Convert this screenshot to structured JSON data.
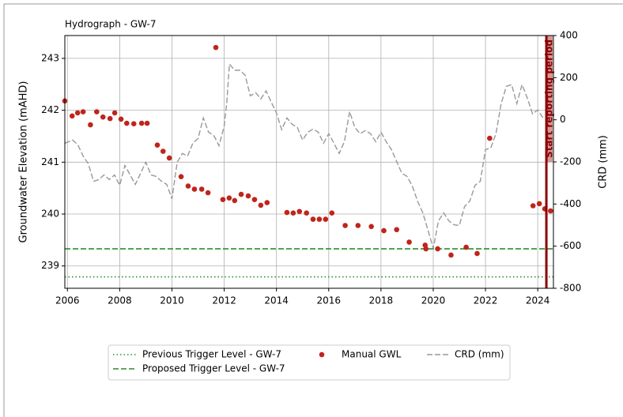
{
  "chart_data": {
    "type": "line",
    "title": "Hydrograph - GW-7",
    "ylabel": "Groundwater Elevation (mAHD)",
    "y2label": "CRD (mm)",
    "xlim": [
      2005.9,
      2024.6
    ],
    "xticks": [
      2006,
      2008,
      2010,
      2012,
      2014,
      2016,
      2018,
      2020,
      2022,
      2024
    ],
    "ylim": [
      238.57,
      243.44
    ],
    "yticks": [
      239,
      240,
      241,
      242,
      243
    ],
    "y2lim": [
      -800,
      400
    ],
    "y2ticks": [
      -800,
      -600,
      -400,
      -200,
      0,
      200,
      400
    ],
    "grid": true,
    "legend": "below",
    "series": [
      {
        "name": "Manual GWL",
        "type": "scatter",
        "color": "#c0241b",
        "x": [
          2005.9,
          2006.18,
          2006.39,
          2006.6,
          2006.88,
          2007.12,
          2007.36,
          2007.63,
          2007.81,
          2008.05,
          2008.27,
          2008.54,
          2008.84,
          2009.05,
          2009.44,
          2009.66,
          2009.9,
          2010.35,
          2010.62,
          2010.86,
          2011.14,
          2011.38,
          2011.68,
          2011.95,
          2012.19,
          2012.4,
          2012.65,
          2012.92,
          2013.16,
          2013.4,
          2013.64,
          2014.4,
          2014.64,
          2014.88,
          2015.15,
          2015.4,
          2015.64,
          2015.88,
          2016.12,
          2016.63,
          2017.12,
          2017.63,
          2018.11,
          2018.6,
          2019.08,
          2019.69,
          2019.72,
          2020.17,
          2020.68,
          2021.26,
          2021.68,
          2022.16,
          2023.82,
          2024.06,
          2024.27,
          2024.49
        ],
        "values": [
          242.18,
          241.89,
          241.95,
          241.97,
          241.72,
          241.97,
          241.87,
          241.84,
          241.95,
          241.83,
          241.75,
          241.74,
          241.75,
          241.75,
          241.33,
          241.21,
          241.08,
          240.72,
          240.54,
          240.48,
          240.48,
          240.41,
          243.21,
          240.28,
          240.31,
          240.26,
          240.38,
          240.35,
          240.28,
          240.17,
          240.22,
          240.03,
          240.02,
          240.05,
          240.02,
          239.9,
          239.9,
          239.9,
          240.02,
          239.78,
          239.78,
          239.76,
          239.68,
          239.7,
          239.46,
          239.4,
          239.33,
          239.33,
          239.21,
          239.36,
          239.24,
          241.46,
          240.16,
          240.2,
          240.1,
          240.06
        ]
      },
      {
        "name": "CRD (mm)",
        "type": "line",
        "axis": "y2",
        "color": "#999999",
        "x": [
          2005.9,
          2006.2,
          2006.4,
          2006.6,
          2006.8,
          2007.0,
          2007.2,
          2007.4,
          2007.6,
          2007.8,
          2008.0,
          2008.2,
          2008.4,
          2008.6,
          2008.8,
          2009.0,
          2009.2,
          2009.4,
          2009.6,
          2009.8,
          2010.0,
          2010.2,
          2010.4,
          2010.6,
          2010.8,
          2011.0,
          2011.2,
          2011.4,
          2011.6,
          2011.8,
          2012.0,
          2012.1,
          2012.2,
          2012.4,
          2012.6,
          2012.8,
          2013.0,
          2013.2,
          2013.4,
          2013.6,
          2013.8,
          2014.0,
          2014.2,
          2014.4,
          2014.6,
          2014.8,
          2015.0,
          2015.2,
          2015.4,
          2015.6,
          2015.8,
          2016.0,
          2016.2,
          2016.4,
          2016.6,
          2016.8,
          2017.0,
          2017.2,
          2017.4,
          2017.6,
          2017.8,
          2018.0,
          2018.2,
          2018.4,
          2018.6,
          2018.8,
          2019.0,
          2019.2,
          2019.4,
          2019.6,
          2019.8,
          2020.0,
          2020.2,
          2020.4,
          2020.6,
          2020.8,
          2021.0,
          2021.2,
          2021.4,
          2021.6,
          2021.8,
          2022.0,
          2022.2,
          2022.4,
          2022.6,
          2022.8,
          2023.0,
          2023.2,
          2023.4,
          2023.6,
          2023.8,
          2024.0,
          2024.2
        ],
        "values": [
          -111,
          -96,
          -119,
          -172,
          -209,
          -292,
          -284,
          -262,
          -284,
          -262,
          -311,
          -217,
          -262,
          -307,
          -254,
          -202,
          -262,
          -269,
          -292,
          -307,
          -375,
          -202,
          -160,
          -172,
          -111,
          -89,
          9,
          -59,
          -74,
          -123,
          -29,
          84,
          265,
          235,
          235,
          212,
          114,
          129,
          99,
          137,
          84,
          32,
          -47,
          9,
          -21,
          -36,
          -96,
          -59,
          -44,
          -59,
          -111,
          -66,
          -111,
          -160,
          -104,
          39,
          -36,
          -66,
          -51,
          -66,
          -104,
          -59,
          -104,
          -141,
          -198,
          -254,
          -269,
          -314,
          -386,
          -442,
          -525,
          -611,
          -480,
          -442,
          -480,
          -499,
          -502,
          -412,
          -386,
          -311,
          -292,
          -141,
          -134,
          -66,
          77,
          159,
          167,
          77,
          167,
          103,
          28,
          47,
          9
        ]
      }
    ],
    "hlines": [
      {
        "name": "Previous Trigger Level - GW-7",
        "value": 238.79,
        "color": "#2e8b2e",
        "style": "dotted"
      },
      {
        "name": "Proposed Trigger Level - GW-7",
        "value": 239.33,
        "color": "#2e8b2e",
        "style": "dashed"
      }
    ],
    "vline": {
      "x": 2024.33,
      "label": "Start reporting period",
      "color": "#8b0000"
    }
  }
}
